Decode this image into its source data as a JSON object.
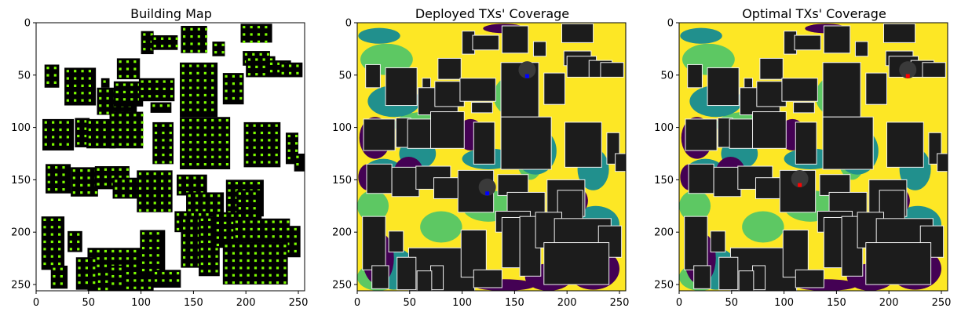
{
  "colors": {
    "building": "#1c1c1c",
    "building_edge": "#f0f0f0",
    "green_points": "#7cfc00",
    "cov_low": "#440154",
    "cov_mid": "#21908d",
    "cov_good": "#5dc863",
    "cov_high": "#fde725",
    "tx_deployed": "#0000ff",
    "tx_optimal": "#ff0000",
    "tx_disc": "#3a3a3a"
  },
  "chart_data": [
    {
      "type": "heatmap",
      "title": "Building Map",
      "xlim": [
        0,
        256
      ],
      "ylim": [
        256,
        0
      ],
      "x_ticks": [
        0,
        50,
        100,
        150,
        200,
        250
      ],
      "y_ticks": [
        0,
        50,
        100,
        150,
        200,
        250
      ],
      "grid": false,
      "legend": "none",
      "points_color": "green",
      "background": "white"
    },
    {
      "type": "heatmap",
      "title": "Deployed TXs' Coverage",
      "xlim": [
        0,
        256
      ],
      "ylim": [
        256,
        0
      ],
      "x_ticks": [
        0,
        50,
        100,
        150,
        200,
        250
      ],
      "y_ticks": [
        0,
        50,
        100,
        150,
        200,
        250
      ],
      "grid": false,
      "legend": "none",
      "transmitters": [
        {
          "x": 162,
          "y": 51
        },
        {
          "x": 124,
          "y": 163
        }
      ]
    },
    {
      "type": "heatmap",
      "title": "Optimal TXs' Coverage",
      "xlim": [
        0,
        256
      ],
      "ylim": [
        256,
        0
      ],
      "x_ticks": [
        0,
        50,
        100,
        150,
        200,
        250
      ],
      "y_ticks": [
        0,
        50,
        100,
        150,
        200,
        250
      ],
      "grid": false,
      "legend": "none",
      "transmitters": [
        {
          "x": 218,
          "y": 51
        },
        {
          "x": 115,
          "y": 155
        }
      ]
    }
  ]
}
